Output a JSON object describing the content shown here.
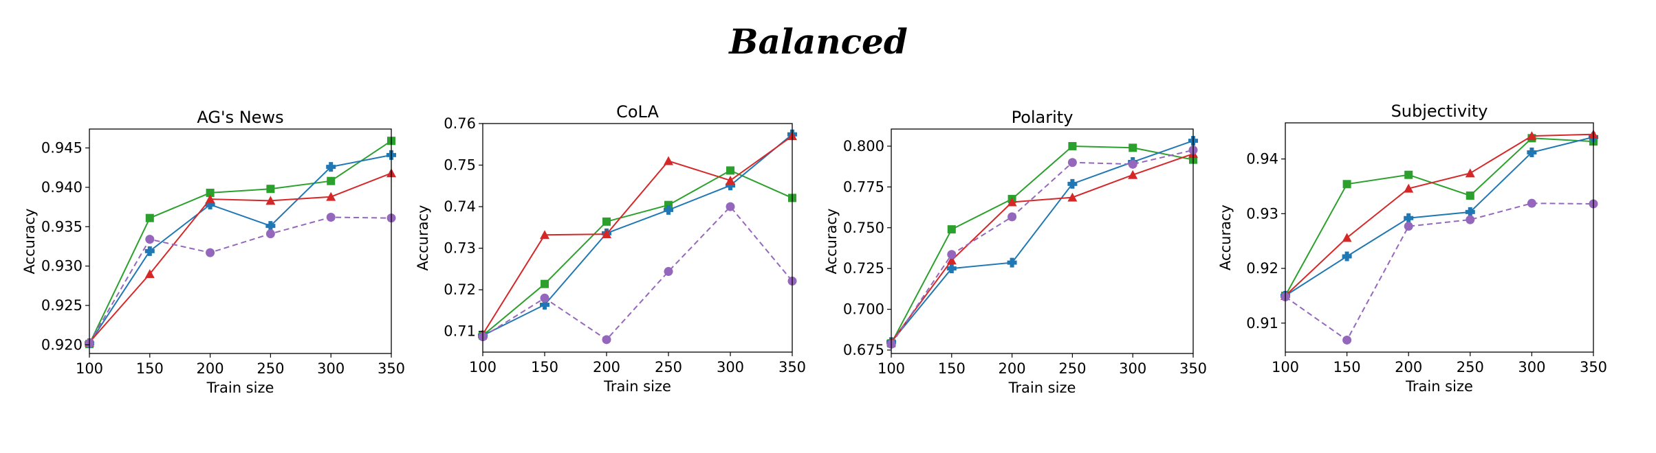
{
  "figure": {
    "title": "Balanced"
  },
  "chart_data": [
    {
      "type": "line",
      "title": "AG's News",
      "xlabel": "Train size",
      "ylabel": "Accuracy",
      "x": [
        100,
        150,
        200,
        250,
        300,
        350
      ],
      "xticks": [
        "100",
        "150",
        "200",
        "250",
        "300",
        "350"
      ],
      "xlim": [
        100,
        350
      ],
      "yticks": [
        "0.920",
        "0.925",
        "0.930",
        "0.935",
        "0.940",
        "0.945"
      ],
      "ylim": [
        0.9189,
        0.9474
      ],
      "grid": false,
      "series": [
        {
          "name": "green-square",
          "color": "#2ca02c",
          "marker": "square",
          "dashed": false,
          "values": [
            0.9201,
            0.9361,
            0.9393,
            0.9398,
            0.9408,
            0.9459
          ]
        },
        {
          "name": "blue-plus",
          "color": "#1f77b4",
          "marker": "plus",
          "dashed": false,
          "values": [
            0.9202,
            0.9319,
            0.9378,
            0.9351,
            0.9426,
            0.9441
          ]
        },
        {
          "name": "red-triangle",
          "color": "#d62728",
          "marker": "triangle",
          "dashed": false,
          "values": [
            0.9203,
            0.929,
            0.9385,
            0.9383,
            0.9388,
            0.9418
          ]
        },
        {
          "name": "purple-circle",
          "color": "#9467bd",
          "marker": "circle",
          "dashed": true,
          "values": [
            0.9202,
            0.9334,
            0.9317,
            0.9341,
            0.9362,
            0.9361
          ]
        }
      ]
    },
    {
      "type": "line",
      "title": "CoLA",
      "xlabel": "Train size",
      "ylabel": "Accuracy",
      "x": [
        100,
        150,
        200,
        250,
        300,
        350
      ],
      "xticks": [
        "100",
        "150",
        "200",
        "250",
        "300",
        "350"
      ],
      "xlim": [
        100,
        350
      ],
      "yticks": [
        "0.71",
        "0.72",
        "0.73",
        "0.74",
        "0.75",
        "0.76"
      ],
      "ylim": [
        0.705,
        0.76
      ],
      "grid": false,
      "series": [
        {
          "name": "green-square",
          "color": "#2ca02c",
          "marker": "square",
          "dashed": false,
          "values": [
            0.709,
            0.7214,
            0.7364,
            0.7404,
            0.7487,
            0.7421
          ]
        },
        {
          "name": "blue-plus",
          "color": "#1f77b4",
          "marker": "plus",
          "dashed": false,
          "values": [
            0.709,
            0.7164,
            0.7336,
            0.7392,
            0.7451,
            0.7574
          ]
        },
        {
          "name": "red-triangle",
          "color": "#d62728",
          "marker": "triangle",
          "dashed": false,
          "values": [
            0.7093,
            0.7332,
            0.7334,
            0.751,
            0.7463,
            0.757
          ]
        },
        {
          "name": "purple-circle",
          "color": "#9467bd",
          "marker": "circle",
          "dashed": true,
          "values": [
            0.7087,
            0.718,
            0.708,
            0.7244,
            0.74,
            0.7221
          ]
        }
      ]
    },
    {
      "type": "line",
      "title": "Polarity",
      "xlabel": "Train size",
      "ylabel": "Accuracy",
      "x": [
        100,
        150,
        200,
        250,
        300,
        350
      ],
      "xticks": [
        "100",
        "150",
        "200",
        "250",
        "300",
        "350"
      ],
      "xlim": [
        100,
        350
      ],
      "yticks": [
        "0.675",
        "0.700",
        "0.725",
        "0.750",
        "0.775",
        "0.800"
      ],
      "ylim": [
        0.6729,
        0.8105
      ],
      "grid": false,
      "series": [
        {
          "name": "green-square",
          "color": "#2ca02c",
          "marker": "square",
          "dashed": false,
          "values": [
            0.6791,
            0.749,
            0.7676,
            0.8,
            0.799,
            0.7917
          ]
        },
        {
          "name": "blue-plus",
          "color": "#1f77b4",
          "marker": "plus",
          "dashed": false,
          "values": [
            0.6799,
            0.725,
            0.7286,
            0.7769,
            0.7903,
            0.8033
          ]
        },
        {
          "name": "red-triangle",
          "color": "#d62728",
          "marker": "triangle",
          "dashed": false,
          "values": [
            0.6799,
            0.73,
            0.7657,
            0.7686,
            0.7824,
            0.7953
          ]
        },
        {
          "name": "purple-circle",
          "color": "#9467bd",
          "marker": "circle",
          "dashed": true,
          "values": [
            0.6786,
            0.7336,
            0.7567,
            0.79,
            0.7889,
            0.7976
          ]
        }
      ]
    },
    {
      "type": "line",
      "title": "Subjectivity",
      "xlabel": "Train size",
      "ylabel": "Accuracy",
      "x": [
        100,
        150,
        200,
        250,
        300,
        350
      ],
      "xticks": [
        "100",
        "150",
        "200",
        "250",
        "300",
        "350"
      ],
      "xlim": [
        100,
        350
      ],
      "yticks": [
        "0.91",
        "0.92",
        "0.93",
        "0.94"
      ],
      "ylim": [
        0.9047,
        0.9466
      ],
      "grid": false,
      "series": [
        {
          "name": "green-square",
          "color": "#2ca02c",
          "marker": "square",
          "dashed": false,
          "values": [
            0.915,
            0.9354,
            0.9371,
            0.9333,
            0.9438,
            0.9432
          ]
        },
        {
          "name": "blue-plus",
          "color": "#1f77b4",
          "marker": "plus",
          "dashed": false,
          "values": [
            0.915,
            0.9222,
            0.9292,
            0.9303,
            0.9412,
            0.944
          ]
        },
        {
          "name": "red-triangle",
          "color": "#d62728",
          "marker": "triangle",
          "dashed": false,
          "values": [
            0.915,
            0.9256,
            0.9346,
            0.9374,
            0.9442,
            0.9445
          ]
        },
        {
          "name": "purple-circle",
          "color": "#9467bd",
          "marker": "circle",
          "dashed": true,
          "values": [
            0.9148,
            0.9069,
            0.9277,
            0.9289,
            0.9319,
            0.9318
          ]
        }
      ]
    }
  ]
}
